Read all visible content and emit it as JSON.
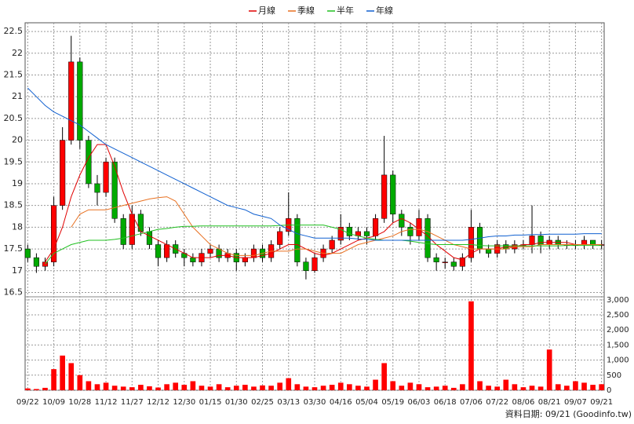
{
  "chart_data": {
    "type": "candlestick",
    "legend_position": "top",
    "source": "資料日期: 09/21 (Goodinfo.tw)",
    "up_color": "#ff0000",
    "down_color": "#00aa00",
    "volume_color": "#ff0000",
    "xlim": [
      -0.3,
      66.3
    ],
    "xticks": [
      {
        "value": 0,
        "label": "09/22"
      },
      {
        "value": 3,
        "label": "10/09"
      },
      {
        "value": 6,
        "label": "10/28"
      },
      {
        "value": 9,
        "label": "11/12"
      },
      {
        "value": 12,
        "label": "11/27"
      },
      {
        "value": 15,
        "label": "12/12"
      },
      {
        "value": 18,
        "label": "12/30"
      },
      {
        "value": 21,
        "label": "01/15"
      },
      {
        "value": 24,
        "label": "01/30"
      },
      {
        "value": 27,
        "label": "02/25"
      },
      {
        "value": 30,
        "label": "03/13"
      },
      {
        "value": 33,
        "label": "03/30"
      },
      {
        "value": 36,
        "label": "04/16"
      },
      {
        "value": 39,
        "label": "05/04"
      },
      {
        "value": 42,
        "label": "05/19"
      },
      {
        "value": 45,
        "label": "06/03"
      },
      {
        "value": 48,
        "label": "06/18"
      },
      {
        "value": 51,
        "label": "07/06"
      },
      {
        "value": 54,
        "label": "07/22"
      },
      {
        "value": 57,
        "label": "08/06"
      },
      {
        "value": 60,
        "label": "08/21"
      },
      {
        "value": 63,
        "label": "09/07"
      },
      {
        "value": 66,
        "label": "09/21"
      }
    ],
    "ylim": [
      16.4,
      22.7
    ],
    "yticks": [
      16.5,
      17,
      17.5,
      18,
      18.5,
      19,
      19.5,
      20,
      20.5,
      21,
      21.5,
      22,
      22.5
    ],
    "y2lim": [
      0,
      3100
    ],
    "y2ticks": [
      0,
      500,
      {
        "value": 1000,
        "label": "1,000"
      },
      {
        "value": 1500,
        "label": "1,500"
      },
      {
        "value": 2000,
        "label": "2,000"
      },
      {
        "value": 2500,
        "label": "2,500"
      },
      {
        "value": 3000,
        "label": "3,000"
      }
    ],
    "grid": true,
    "open": [
      17.5,
      17.3,
      17.1,
      17.2,
      18.5,
      20.0,
      21.8,
      20.0,
      19.0,
      18.8,
      19.5,
      18.2,
      17.6,
      18.3,
      17.9,
      17.6,
      17.3,
      17.6,
      17.4,
      17.3,
      17.2,
      17.4,
      17.5,
      17.3,
      17.4,
      17.2,
      17.3,
      17.5,
      17.3,
      17.6,
      17.9,
      18.2,
      17.2,
      17.0,
      17.3,
      17.5,
      17.7,
      18.0,
      17.8,
      17.9,
      17.8,
      18.2,
      19.2,
      18.3,
      18.0,
      17.8,
      18.2,
      17.3,
      17.2,
      17.2,
      17.1,
      17.3,
      18.0,
      17.5,
      17.4,
      17.6,
      17.5,
      17.6,
      17.6,
      17.8,
      17.6,
      17.7,
      17.6,
      17.6,
      17.6,
      17.7,
      17.6
    ],
    "high": [
      17.6,
      17.4,
      17.3,
      18.7,
      20.3,
      22.4,
      21.9,
      20.1,
      19.2,
      19.6,
      19.6,
      18.3,
      18.5,
      18.4,
      18.0,
      17.7,
      17.7,
      17.7,
      17.5,
      17.4,
      17.5,
      17.6,
      17.6,
      17.5,
      17.5,
      17.4,
      17.6,
      17.6,
      17.7,
      18.0,
      18.8,
      18.3,
      17.3,
      17.4,
      17.6,
      17.8,
      18.3,
      18.1,
      18.0,
      18.0,
      18.3,
      20.1,
      19.3,
      18.4,
      18.1,
      18.4,
      18.3,
      17.4,
      17.3,
      17.3,
      17.4,
      18.4,
      18.1,
      17.6,
      17.7,
      17.7,
      17.7,
      17.7,
      18.5,
      17.9,
      17.8,
      17.8,
      17.7,
      17.7,
      17.8,
      17.7,
      17.7
    ],
    "low": [
      17.2,
      16.95,
      17.0,
      17.1,
      18.4,
      19.9,
      19.8,
      18.9,
      18.5,
      18.7,
      18.1,
      17.5,
      17.5,
      17.8,
      17.5,
      17.1,
      17.2,
      17.3,
      17.1,
      17.1,
      17.1,
      17.3,
      17.2,
      17.2,
      17.0,
      17.1,
      17.2,
      17.2,
      17.2,
      17.5,
      17.8,
      17.1,
      16.8,
      16.95,
      17.2,
      17.4,
      17.6,
      17.7,
      17.7,
      17.6,
      17.7,
      18.1,
      18.1,
      17.8,
      17.6,
      17.7,
      17.2,
      17.0,
      17.05,
      17.0,
      17.0,
      17.2,
      17.4,
      17.3,
      17.3,
      17.4,
      17.4,
      17.5,
      17.4,
      17.4,
      17.5,
      17.5,
      17.5,
      17.5,
      17.5,
      17.5,
      17.5
    ],
    "close": [
      17.3,
      17.1,
      17.2,
      18.5,
      20.0,
      21.8,
      20.0,
      19.0,
      18.8,
      19.5,
      18.2,
      17.6,
      18.3,
      17.9,
      17.6,
      17.3,
      17.6,
      17.4,
      17.3,
      17.2,
      17.4,
      17.5,
      17.3,
      17.4,
      17.2,
      17.3,
      17.5,
      17.3,
      17.6,
      17.9,
      18.2,
      17.2,
      17.0,
      17.3,
      17.5,
      17.7,
      18.0,
      17.8,
      17.9,
      17.8,
      18.2,
      19.2,
      18.3,
      18.0,
      17.8,
      18.2,
      17.3,
      17.2,
      17.2,
      17.1,
      17.3,
      18.0,
      17.5,
      17.4,
      17.6,
      17.5,
      17.6,
      17.6,
      17.8,
      17.6,
      17.7,
      17.6,
      17.6,
      17.6,
      17.7,
      17.6,
      17.6
    ],
    "volume": [
      60,
      40,
      80,
      700,
      1150,
      900,
      500,
      300,
      200,
      250,
      150,
      120,
      100,
      180,
      130,
      90,
      200,
      250,
      180,
      300,
      150,
      120,
      200,
      100,
      150,
      180,
      120,
      160,
      150,
      250,
      400,
      200,
      120,
      100,
      150,
      180,
      250,
      200,
      150,
      120,
      350,
      900,
      300,
      150,
      250,
      200,
      100,
      120,
      150,
      80,
      200,
      2950,
      300,
      150,
      120,
      350,
      200,
      100,
      150,
      120,
      1350,
      200,
      150,
      300,
      250,
      180,
      200
    ],
    "series": [
      {
        "name": "月線",
        "color": "#e00000",
        "values": [
          null,
          null,
          17.2,
          17.5,
          18.0,
          18.7,
          19.2,
          19.6,
          19.9,
          19.9,
          19.4,
          18.8,
          18.3,
          17.9,
          17.8,
          17.7,
          17.6,
          17.5,
          17.4,
          17.3,
          17.3,
          17.3,
          17.35,
          17.35,
          17.3,
          17.3,
          17.3,
          17.35,
          17.4,
          17.5,
          17.6,
          17.6,
          17.5,
          17.4,
          17.35,
          17.4,
          17.5,
          17.6,
          17.7,
          17.75,
          17.8,
          17.9,
          18.1,
          18.2,
          18.1,
          17.95,
          17.8,
          17.6,
          17.45,
          17.3,
          17.25,
          17.4,
          17.5,
          17.5,
          17.5,
          17.55,
          17.55,
          17.6,
          17.6,
          17.65,
          17.65,
          17.65,
          17.65,
          17.6,
          17.6,
          17.6,
          17.6
        ]
      },
      {
        "name": "季線",
        "color": "#e87020",
        "values": [
          null,
          null,
          null,
          null,
          null,
          18.0,
          18.3,
          18.4,
          18.4,
          18.4,
          18.45,
          18.5,
          18.55,
          18.6,
          18.65,
          18.68,
          18.7,
          18.6,
          18.3,
          18.0,
          17.8,
          17.6,
          17.5,
          17.4,
          17.35,
          17.35,
          17.35,
          17.4,
          17.45,
          17.45,
          17.45,
          17.5,
          17.5,
          17.45,
          17.4,
          17.4,
          17.4,
          17.5,
          17.6,
          17.65,
          17.7,
          17.75,
          17.8,
          17.9,
          17.95,
          17.95,
          17.9,
          17.8,
          17.7,
          17.6,
          17.55,
          17.5,
          17.5,
          17.5,
          17.5,
          17.5,
          17.55,
          17.55,
          17.55,
          17.6,
          17.6,
          17.6,
          17.6,
          17.6,
          17.6,
          17.6,
          17.6
        ]
      },
      {
        "name": "半年",
        "color": "#20c020",
        "values": [
          null,
          null,
          17.15,
          17.4,
          17.5,
          17.6,
          17.65,
          17.7,
          17.7,
          17.7,
          17.72,
          17.75,
          17.8,
          17.85,
          17.9,
          17.95,
          17.97,
          18.0,
          18.02,
          18.02,
          18.03,
          18.03,
          18.03,
          18.03,
          18.03,
          18.03,
          18.03,
          18.03,
          18.03,
          18.04,
          18.05,
          18.05,
          18.05,
          18.05,
          18.05,
          18.0,
          17.95,
          17.85,
          17.8,
          17.75,
          17.72,
          17.7,
          17.7,
          17.7,
          17.68,
          17.65,
          17.62,
          17.6,
          17.6,
          17.6,
          17.6,
          17.6,
          17.58,
          17.57,
          17.57,
          17.57,
          17.57,
          17.57,
          17.57,
          17.57,
          17.57,
          17.57,
          17.58,
          17.58,
          17.58,
          17.58,
          17.58
        ]
      },
      {
        "name": "年線",
        "color": "#1060d0",
        "values": [
          21.2,
          21.0,
          20.8,
          20.65,
          20.55,
          20.45,
          20.35,
          20.2,
          20.05,
          19.9,
          19.8,
          19.7,
          19.6,
          19.5,
          19.4,
          19.3,
          19.2,
          19.1,
          19.0,
          18.9,
          18.8,
          18.7,
          18.6,
          18.5,
          18.45,
          18.4,
          18.3,
          18.25,
          18.2,
          18.05,
          17.95,
          17.85,
          17.8,
          17.75,
          17.75,
          17.75,
          17.75,
          17.75,
          17.73,
          17.72,
          17.7,
          17.7,
          17.7,
          17.7,
          17.7,
          17.7,
          17.7,
          17.7,
          17.7,
          17.7,
          17.7,
          17.72,
          17.75,
          17.78,
          17.8,
          17.8,
          17.82,
          17.82,
          17.83,
          17.83,
          17.84,
          17.84,
          17.84,
          17.84,
          17.85,
          17.85,
          17.85
        ]
      }
    ]
  }
}
